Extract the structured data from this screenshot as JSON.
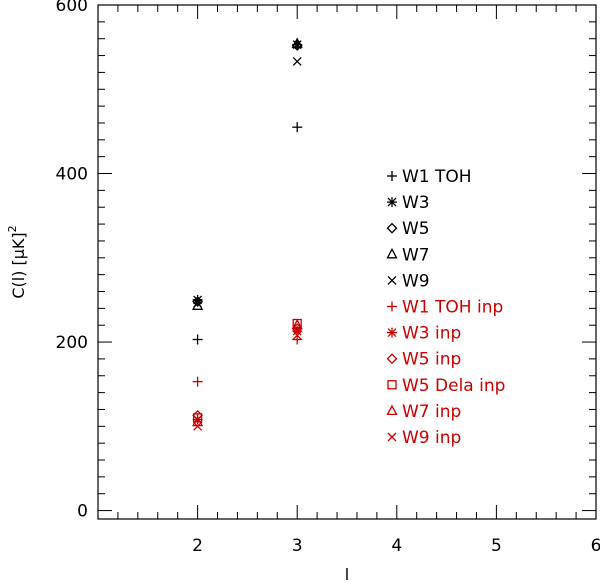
{
  "chart_data": {
    "type": "scatter",
    "xlabel": "l",
    "ylabel": "C(l) [μK]",
    "ylabel_superscript": "2",
    "xlim": [
      1,
      6
    ],
    "ylim": [
      -10,
      600
    ],
    "x_ticks": [
      2,
      3,
      4,
      5,
      6
    ],
    "x_tick_labels": [
      "2",
      "3",
      "4",
      "5",
      "6"
    ],
    "y_ticks": [
      0,
      200,
      400,
      600
    ],
    "y_tick_labels": [
      "0",
      "200",
      "400",
      "600"
    ],
    "legend_position": "right-center",
    "grid": false,
    "series": [
      {
        "name": "W1  TOH",
        "marker": "plus",
        "color": "#000000",
        "x": [
          2,
          3
        ],
        "y": [
          203,
          455
        ]
      },
      {
        "name": "W3",
        "marker": "asterisk",
        "color": "#000000",
        "x": [
          2,
          3
        ],
        "y": [
          250,
          553
        ]
      },
      {
        "name": "W5",
        "marker": "diamond",
        "color": "#000000",
        "x": [
          2,
          3
        ],
        "y": [
          248,
          552
        ]
      },
      {
        "name": "W7",
        "marker": "triangle",
        "color": "#000000",
        "x": [
          2,
          3
        ],
        "y": [
          243,
          554
        ]
      },
      {
        "name": "W9",
        "marker": "cross",
        "color": "#000000",
        "x": [
          2,
          3
        ],
        "y": [
          246,
          533
        ]
      },
      {
        "name": "W1  TOH inp",
        "marker": "plus",
        "color": "#cc0000",
        "x": [
          2,
          3
        ],
        "y": [
          153,
          203
        ]
      },
      {
        "name": "W3  inp",
        "marker": "asterisk",
        "color": "#cc0000",
        "x": [
          2,
          3
        ],
        "y": [
          108,
          213
        ]
      },
      {
        "name": "W5  inp",
        "marker": "diamond",
        "color": "#cc0000",
        "x": [
          2,
          3
        ],
        "y": [
          113,
          216
        ]
      },
      {
        "name": "W5  Dela inp",
        "marker": "square",
        "color": "#cc0000",
        "x": [
          2,
          3
        ],
        "y": [
          110,
          222
        ]
      },
      {
        "name": "W7  inp",
        "marker": "triangle",
        "color": "#cc0000",
        "x": [
          2,
          3
        ],
        "y": [
          105,
          220
        ]
      },
      {
        "name": "W9  inp",
        "marker": "cross",
        "color": "#cc0000",
        "x": [
          2,
          3
        ],
        "y": [
          100,
          208
        ]
      }
    ]
  }
}
